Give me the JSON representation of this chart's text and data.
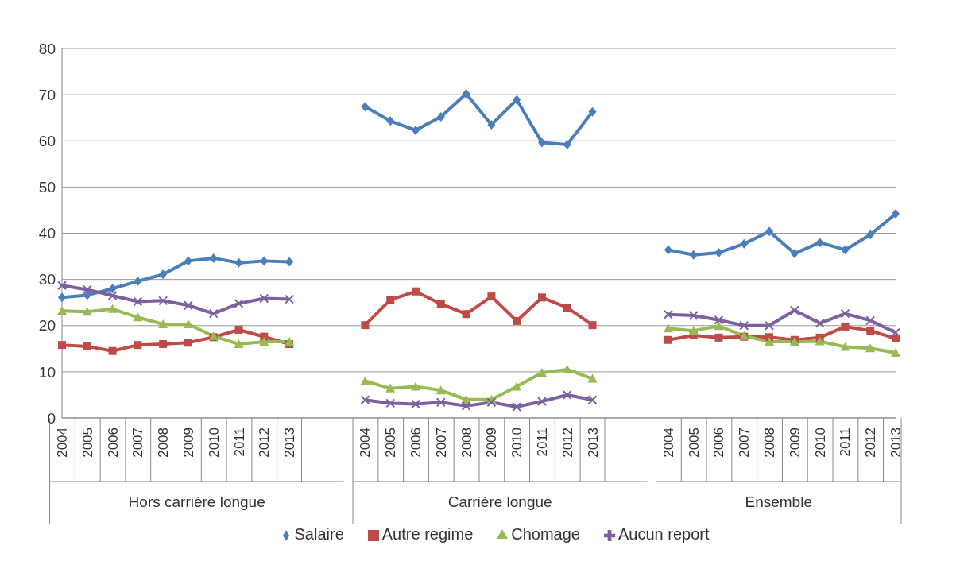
{
  "chart_data": {
    "type": "line",
    "categories": [
      "2004",
      "2005",
      "2006",
      "2007",
      "2008",
      "2009",
      "2010",
      "2011",
      "2012",
      "2013",
      null,
      null,
      "2004",
      "2005",
      "2006",
      "2007",
      "2008",
      "2009",
      "2010",
      "2011",
      "2012",
      "2013",
      null,
      null,
      "2004",
      "2005",
      "2006",
      "2007",
      "2008",
      "2009",
      "2010",
      "2011",
      "2012",
      "2013"
    ],
    "series": [
      {
        "name": "Salaire",
        "color": "#4a7ebb",
        "marker": "diamond",
        "values": [
          26.1,
          26.6,
          28,
          29.6,
          31.1,
          34,
          34.6,
          33.6,
          34,
          33.8,
          null,
          null,
          67.4,
          64.3,
          62.3,
          65.2,
          70.2,
          63.5,
          68.9,
          59.6,
          59.2,
          66.3,
          null,
          null,
          36.4,
          35.3,
          35.8,
          37.7,
          40.4,
          35.6,
          38,
          36.4,
          39.7,
          44.2
        ]
      },
      {
        "name": "Autre regime",
        "color": "#be4b48",
        "marker": "square",
        "values": [
          15.8,
          15.5,
          14.5,
          15.8,
          16,
          16.3,
          17.5,
          19.1,
          17.6,
          16,
          null,
          null,
          20.1,
          25.6,
          27.4,
          24.7,
          22.5,
          26.3,
          21,
          26.1,
          23.9,
          20.1,
          null,
          null,
          16.9,
          17.9,
          17.4,
          17.6,
          17.5,
          16.9,
          17.4,
          19.8,
          18.9,
          17.2
        ]
      },
      {
        "name": "Chomage",
        "color": "#98b954",
        "marker": "triangle",
        "values": [
          23.2,
          23,
          23.6,
          21.8,
          20.3,
          20.3,
          17.7,
          16,
          16.5,
          16.5,
          null,
          null,
          8,
          6.4,
          6.8,
          6,
          4,
          4,
          6.8,
          9.8,
          10.5,
          8.5,
          null,
          null,
          19.4,
          18.9,
          19.9,
          17.8,
          16.5,
          16.5,
          16.6,
          15.4,
          15.1,
          14.1
        ]
      },
      {
        "name": "Aucun report",
        "color": "#7d60a0",
        "marker": "cross",
        "values": [
          28.7,
          27.8,
          26.5,
          25.2,
          25.4,
          24.4,
          22.6,
          24.8,
          25.9,
          25.7,
          null,
          null,
          3.9,
          3.2,
          3,
          3.4,
          2.6,
          3.4,
          2.4,
          3.6,
          5,
          3.9,
          null,
          null,
          22.4,
          22.2,
          21.2,
          20,
          20,
          23.3,
          20.5,
          22.6,
          21.1,
          18.5
        ]
      }
    ],
    "annotations": [
      "Hors carrière longue",
      "Carrière longue",
      "Ensemble"
    ],
    "ylim": [
      0,
      80
    ],
    "yticks": [
      0,
      10,
      20,
      30,
      40,
      50,
      60,
      70,
      80
    ],
    "grid": "y",
    "legend": "bottom",
    "line_style": "solid"
  }
}
